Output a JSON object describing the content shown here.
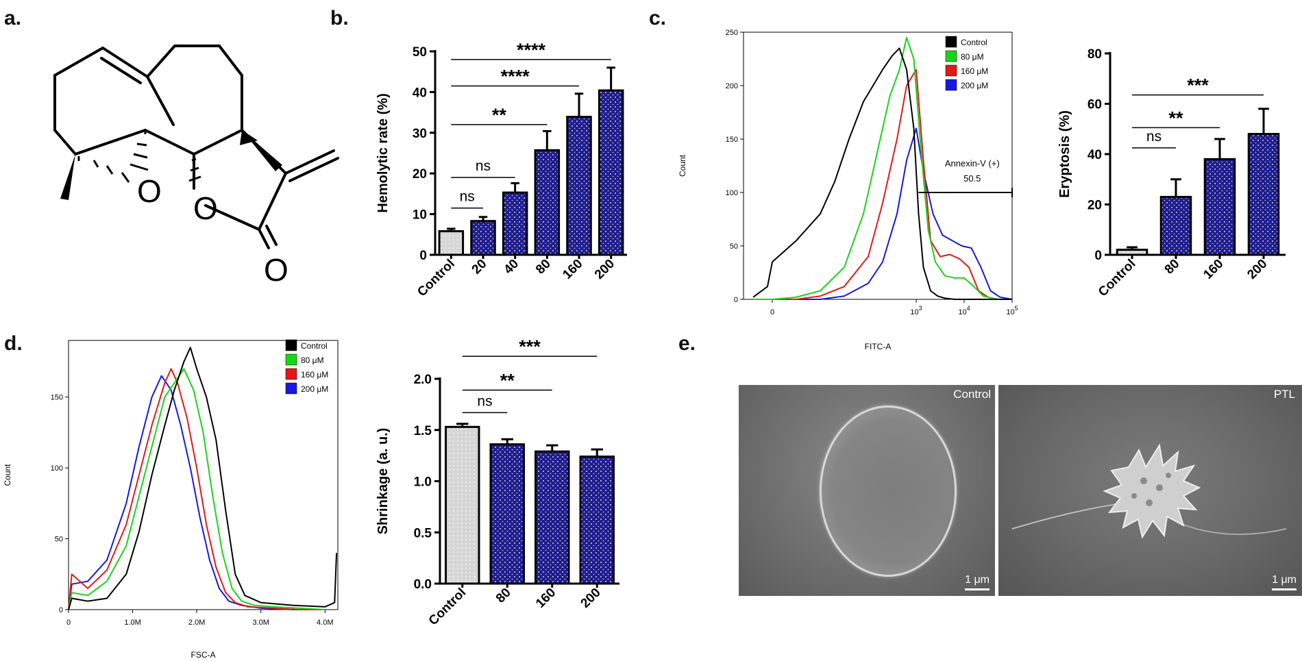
{
  "figure": {
    "panel_labels": [
      "a.",
      "b.",
      "c.",
      "d.",
      "e."
    ],
    "colors": {
      "navy": "#1f1d8c",
      "light": "#d6d6d6",
      "control_line": "#000000",
      "c80": "#19d419",
      "c160": "#e21818",
      "c200": "#1818e0"
    }
  },
  "panel_a": {
    "atoms": [
      "O",
      "O",
      "O"
    ]
  },
  "panel_b": {
    "chart_data": {
      "type": "bar",
      "title": "",
      "xlabel": "",
      "ylabel": "Hemolytic rate (%)",
      "categories": [
        "Control",
        "20",
        "40",
        "80",
        "160",
        "200"
      ],
      "values": [
        5.8,
        8.3,
        15.3,
        25.7,
        33.9,
        40.4
      ],
      "errors": [
        0.6,
        1.0,
        2.3,
        4.7,
        5.7,
        5.6
      ],
      "ylim": [
        0,
        50
      ],
      "yticks": [
        0,
        10,
        20,
        30,
        40,
        50
      ],
      "significance": [
        {
          "from": 0,
          "to": 1,
          "label": "ns",
          "level_value": 11.5
        },
        {
          "from": 0,
          "to": 2,
          "label": "ns",
          "level_value": 19
        },
        {
          "from": 0,
          "to": 3,
          "label": "**",
          "level_value": 32
        },
        {
          "from": 0,
          "to": 4,
          "label": "****",
          "level_value": 41.5
        },
        {
          "from": 0,
          "to": 5,
          "label": "****",
          "level_value": 48
        }
      ]
    }
  },
  "panel_c_hist": {
    "chart_data": {
      "type": "line",
      "xlabel": "FITC-A",
      "ylabel": "Count",
      "xticks": [
        {
          "label": "0",
          "value": 0
        },
        {
          "label": "10",
          "sup": "3",
          "value": 3
        },
        {
          "label": "10",
          "sup": "4",
          "value": 4
        },
        {
          "label": "10",
          "sup": "5",
          "value": 5
        }
      ],
      "xlim": [
        -0.6,
        5
      ],
      "ylim": [
        0,
        250
      ],
      "yticks": [
        0,
        50,
        100,
        150,
        200,
        250
      ],
      "legend": [
        "Control",
        "80 μM",
        "160 μM",
        "200 μM"
      ],
      "series": [
        {
          "name": "Control",
          "color": "#000000",
          "x": [
            -0.4,
            -0.1,
            0,
            0.5,
            1,
            1.3,
            1.6,
            1.9,
            2.1,
            2.3,
            2.5,
            2.65,
            2.8,
            2.95,
            3.05,
            3.15,
            3.3,
            3.45,
            3.6,
            3.8,
            4,
            4.5,
            5
          ],
          "y": [
            2,
            12,
            35,
            55,
            80,
            110,
            150,
            185,
            200,
            215,
            228,
            235,
            215,
            160,
            80,
            30,
            8,
            3,
            1,
            0,
            0,
            0,
            0
          ]
        },
        {
          "name": "80 μM",
          "color": "#19d419",
          "x": [
            -0.4,
            0,
            0.5,
            1,
            1.5,
            1.9,
            2.2,
            2.45,
            2.65,
            2.8,
            2.95,
            3.1,
            3.25,
            3.4,
            3.6,
            3.8,
            4,
            4.2,
            4.4,
            4.7,
            5
          ],
          "y": [
            0,
            0,
            2,
            8,
            30,
            80,
            140,
            190,
            215,
            245,
            225,
            140,
            65,
            35,
            22,
            20,
            20,
            12,
            3,
            0,
            0
          ]
        },
        {
          "name": "160 μM",
          "color": "#e21818",
          "x": [
            -0.4,
            0,
            0.5,
            1,
            1.5,
            2,
            2.3,
            2.6,
            2.8,
            3,
            3.15,
            3.3,
            3.5,
            3.7,
            3.9,
            4.1,
            4.3,
            4.5,
            4.7,
            5
          ],
          "y": [
            0,
            0,
            0,
            3,
            12,
            40,
            90,
            150,
            200,
            215,
            130,
            55,
            40,
            42,
            38,
            30,
            8,
            2,
            0,
            0
          ]
        },
        {
          "name": "200 μM",
          "color": "#1818e0",
          "x": [
            -0.4,
            0,
            0.5,
            1,
            1.5,
            2,
            2.3,
            2.6,
            2.8,
            3,
            3.15,
            3.35,
            3.55,
            3.75,
            3.95,
            4.15,
            4.35,
            4.55,
            4.75,
            5
          ],
          "y": [
            0,
            0,
            0,
            0,
            3,
            15,
            35,
            80,
            130,
            160,
            120,
            80,
            60,
            55,
            50,
            48,
            30,
            8,
            2,
            0
          ]
        }
      ],
      "gate": {
        "label": "Annexin-V (+)",
        "value": "50.5",
        "x_from": 3.05,
        "x_to": 5,
        "y": 100
      }
    }
  },
  "panel_c_bar": {
    "chart_data": {
      "type": "bar",
      "ylabel": "Eryptosis (%)",
      "categories": [
        "Control",
        "80",
        "160",
        "200"
      ],
      "values": [
        2,
        23,
        38,
        48
      ],
      "errors": [
        1,
        7,
        8,
        10
      ],
      "ylim": [
        0,
        80
      ],
      "yticks": [
        0,
        20,
        40,
        60,
        80
      ],
      "significance": [
        {
          "from": 0,
          "to": 1,
          "label": "ns",
          "level_value": 42.5
        },
        {
          "from": 0,
          "to": 2,
          "label": "**",
          "level_value": 50.5
        },
        {
          "from": 0,
          "to": 3,
          "label": "***",
          "level_value": 63.5
        }
      ]
    }
  },
  "panel_d_hist": {
    "chart_data": {
      "type": "line",
      "xlabel": "FSC-A",
      "ylabel": "Count",
      "xticks": [
        {
          "label": "0",
          "value": 0
        },
        {
          "label": "1.0M",
          "value": 1
        },
        {
          "label": "2.0M",
          "value": 2
        },
        {
          "label": "3.0M",
          "value": 3
        },
        {
          "label": "4.0M",
          "value": 4
        }
      ],
      "xlim": [
        0,
        4.2
      ],
      "ylim": [
        0,
        190
      ],
      "yticks": [
        0,
        50,
        100,
        150
      ],
      "legend": [
        "Control",
        "80 μM",
        "160 μM",
        "200 μM"
      ],
      "series": [
        {
          "name": "Control",
          "color": "#000000",
          "x": [
            0,
            0.05,
            0.3,
            0.6,
            0.9,
            1.1,
            1.3,
            1.5,
            1.65,
            1.8,
            1.9,
            2.0,
            2.15,
            2.3,
            2.45,
            2.6,
            2.75,
            3.0,
            3.5,
            4.0,
            4.15,
            4.18
          ],
          "y": [
            0,
            8,
            6,
            8,
            25,
            55,
            95,
            130,
            155,
            175,
            185,
            170,
            150,
            120,
            70,
            25,
            10,
            5,
            3,
            2,
            5,
            40
          ]
        },
        {
          "name": "80 μM",
          "color": "#19d419",
          "x": [
            0,
            0.05,
            0.3,
            0.6,
            0.9,
            1.1,
            1.3,
            1.5,
            1.65,
            1.8,
            1.95,
            2.1,
            2.25,
            2.4,
            2.55,
            2.7,
            2.9,
            3.2,
            3.6,
            4.0
          ],
          "y": [
            0,
            12,
            10,
            20,
            45,
            80,
            115,
            150,
            160,
            170,
            155,
            125,
            80,
            40,
            15,
            6,
            3,
            2,
            1,
            0
          ]
        },
        {
          "name": "160 μM",
          "color": "#e21818",
          "x": [
            0,
            0.05,
            0.3,
            0.6,
            0.9,
            1.1,
            1.3,
            1.5,
            1.6,
            1.7,
            1.85,
            2.0,
            2.15,
            2.3,
            2.45,
            2.6,
            2.8,
            3.2,
            3.6,
            4.0
          ],
          "y": [
            0,
            25,
            15,
            28,
            60,
            95,
            130,
            160,
            170,
            160,
            135,
            100,
            60,
            30,
            12,
            5,
            2,
            1,
            0,
            0
          ]
        },
        {
          "name": "200 μM",
          "color": "#1818e0",
          "x": [
            0,
            0.05,
            0.3,
            0.6,
            0.9,
            1.1,
            1.3,
            1.45,
            1.6,
            1.75,
            1.9,
            2.05,
            2.2,
            2.35,
            2.5,
            2.7,
            3.0,
            3.5,
            4.0
          ],
          "y": [
            0,
            18,
            20,
            35,
            75,
            115,
            150,
            165,
            155,
            130,
            100,
            65,
            35,
            15,
            6,
            3,
            1,
            0,
            0
          ]
        }
      ]
    }
  },
  "panel_d_bar": {
    "chart_data": {
      "type": "bar",
      "ylabel": "Shrinkage  (a. u.)",
      "categories": [
        "Control",
        "80",
        "160",
        "200"
      ],
      "values": [
        1.53,
        1.36,
        1.29,
        1.24
      ],
      "errors": [
        0.03,
        0.05,
        0.06,
        0.07
      ],
      "ylim": [
        0,
        2.0
      ],
      "yticks": [
        "0.0",
        "0.5",
        "1.0",
        "1.5",
        "2.0"
      ],
      "significance": [
        {
          "from": 0,
          "to": 1,
          "label": "ns",
          "level_value": 1.67
        },
        {
          "from": 0,
          "to": 2,
          "label": "**",
          "level_value": 1.89
        },
        {
          "from": 0,
          "to": 3,
          "label": "***",
          "level_value": 2.22
        }
      ]
    }
  },
  "panel_e": {
    "left_caption": "Control",
    "right_caption": "PTL",
    "scale_left": "1 μm",
    "scale_right": "1 μm"
  }
}
